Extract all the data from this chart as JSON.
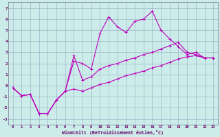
{
  "xlabel": "Windchill (Refroidissement éolien,°C)",
  "xlim": [
    -0.5,
    23.5
  ],
  "ylim": [
    -3.5,
    7.5
  ],
  "yticks": [
    -3,
    -2,
    -1,
    0,
    1,
    2,
    3,
    4,
    5,
    6,
    7
  ],
  "xticks": [
    0,
    1,
    2,
    3,
    4,
    5,
    6,
    7,
    8,
    9,
    10,
    11,
    12,
    13,
    14,
    15,
    16,
    17,
    18,
    19,
    20,
    21,
    22,
    23
  ],
  "bg": "#ccecea",
  "grid_color": "#a0b8c8",
  "lc": "#bb00bb",
  "lw": 0.8,
  "ms": 2.5,
  "line1_x": [
    0,
    1,
    2,
    3,
    4,
    5,
    6,
    7,
    8,
    9,
    10,
    11,
    12,
    13,
    14,
    15,
    16,
    17,
    18,
    19,
    20,
    21,
    22,
    23
  ],
  "line1_y": [
    -0.2,
    -0.9,
    -0.8,
    -2.5,
    -2.5,
    -1.3,
    -0.5,
    -0.3,
    -0.5,
    -0.2,
    0.1,
    0.3,
    0.6,
    0.9,
    1.1,
    1.3,
    1.6,
    1.8,
    2.1,
    2.4,
    2.6,
    2.7,
    2.5,
    2.5
  ],
  "line2_x": [
    0,
    1,
    2,
    3,
    4,
    5,
    6,
    7,
    8,
    9,
    10,
    11,
    12,
    13,
    14,
    15,
    16,
    17,
    18,
    19,
    20,
    21,
    22,
    23
  ],
  "line2_y": [
    -0.2,
    -0.9,
    -0.8,
    -2.5,
    -2.5,
    -1.3,
    -0.5,
    2.2,
    2.0,
    1.5,
    4.7,
    6.2,
    5.3,
    4.8,
    5.8,
    6.0,
    6.7,
    5.0,
    4.2,
    3.5,
    2.8,
    3.0,
    2.5,
    2.5
  ],
  "line3_x": [
    0,
    1,
    2,
    3,
    4,
    5,
    6,
    7,
    8,
    9,
    10,
    11,
    12,
    13,
    14,
    15,
    16,
    17,
    18,
    19,
    20,
    21,
    22,
    23
  ],
  "line3_y": [
    -0.2,
    -0.9,
    -0.8,
    -2.5,
    -2.5,
    -1.3,
    -0.5,
    2.7,
    0.5,
    0.8,
    1.5,
    1.8,
    2.0,
    2.3,
    2.5,
    2.8,
    3.0,
    3.3,
    3.6,
    3.9,
    3.0,
    2.8,
    2.5,
    2.5
  ]
}
